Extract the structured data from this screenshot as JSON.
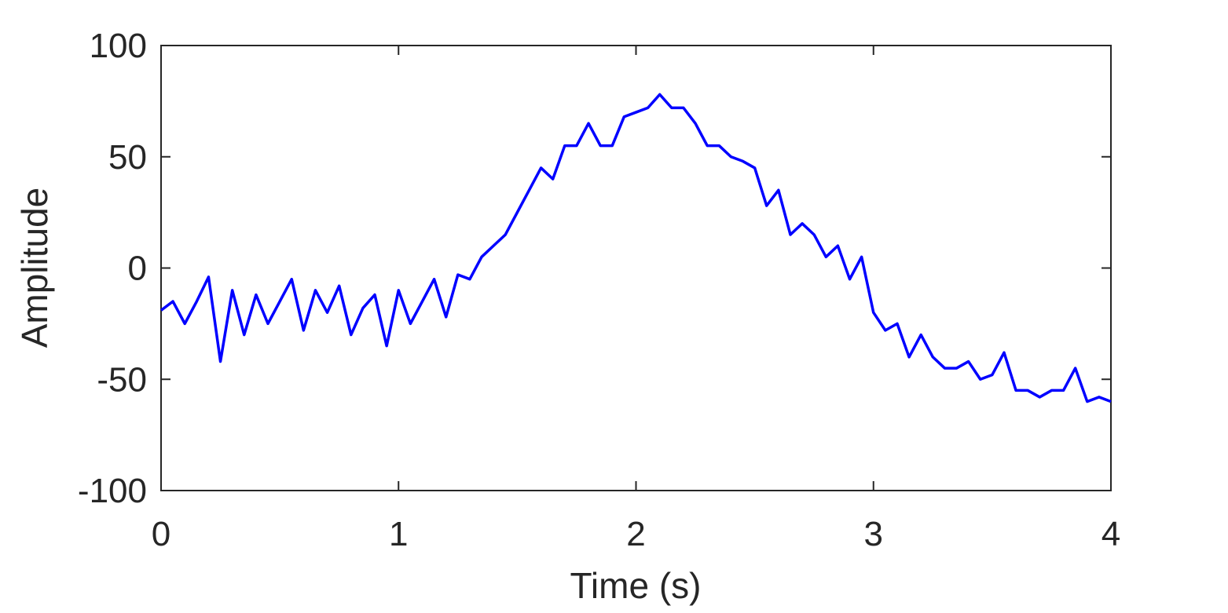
{
  "chart_data": {
    "type": "line",
    "xlabel": "Time (s)",
    "ylabel": "Amplitude",
    "x": [
      0,
      0.05,
      0.1,
      0.15,
      0.2,
      0.25,
      0.3,
      0.35,
      0.4,
      0.45,
      0.5,
      0.55,
      0.6,
      0.65,
      0.7,
      0.75,
      0.8,
      0.85,
      0.9,
      0.95,
      1,
      1.05,
      1.1,
      1.15,
      1.2,
      1.25,
      1.3,
      1.35,
      1.4,
      1.45,
      1.5,
      1.55,
      1.6,
      1.65,
      1.7,
      1.75,
      1.8,
      1.85,
      1.9,
      1.95,
      2,
      2.05,
      2.1,
      2.15,
      2.2,
      2.25,
      2.3,
      2.35,
      2.4,
      2.45,
      2.5,
      2.55,
      2.6,
      2.65,
      2.7,
      2.75,
      2.8,
      2.85,
      2.9,
      2.95,
      3,
      3.05,
      3.1,
      3.15,
      3.2,
      3.25,
      3.3,
      3.35,
      3.4,
      3.45,
      3.5,
      3.55,
      3.6,
      3.65,
      3.7,
      3.75,
      3.8,
      3.85,
      3.9,
      3.95,
      4
    ],
    "series": [
      {
        "color": "#0000ff",
        "values": [
          -19,
          -15,
          -25,
          -15,
          -4,
          -42,
          -10,
          -30,
          -12,
          -25,
          -15,
          -5,
          -28,
          -10,
          -20,
          -8,
          -30,
          -18,
          -12,
          -35,
          -10,
          -25,
          -15,
          -5,
          -22,
          -3,
          -5,
          5,
          10,
          15,
          25,
          35,
          45,
          40,
          55,
          55,
          65,
          55,
          55,
          68,
          70,
          72,
          78,
          72,
          72,
          65,
          55,
          55,
          50,
          48,
          45,
          28,
          35,
          15,
          20,
          15,
          5,
          10,
          -5,
          5,
          -20,
          -28,
          -25,
          -40,
          -30,
          -40,
          -45,
          -45,
          -42,
          -50,
          -48,
          -38,
          -55,
          -55,
          -58,
          -55,
          -55,
          -45,
          -60,
          -58,
          -60
        ]
      }
    ],
    "xlim": [
      0,
      4
    ],
    "xticks": [
      0,
      1,
      2,
      3,
      4
    ],
    "ylim": [
      -100,
      100
    ],
    "yticks": [
      -100,
      -50,
      0,
      50,
      100
    ]
  }
}
